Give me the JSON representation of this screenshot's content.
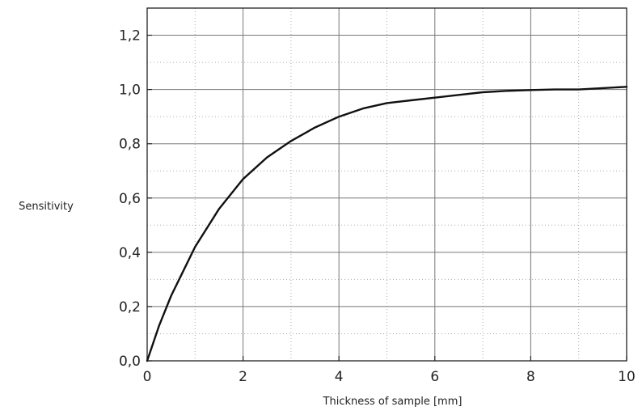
{
  "chart_data": {
    "type": "line",
    "title": "",
    "xlabel": "Thickness of sample [mm]",
    "ylabel": "Sensitivity",
    "xlim": [
      0,
      10
    ],
    "ylim": [
      0,
      1.3
    ],
    "xticks": [
      0,
      2,
      4,
      6,
      8,
      10
    ],
    "xtick_labels": [
      "0",
      "2",
      "4",
      "6",
      "8",
      "10"
    ],
    "yticks": [
      0,
      0.2,
      0.4,
      0.6,
      0.8,
      1.0,
      1.2
    ],
    "ytick_labels": [
      "0,0",
      "0,2",
      "0,4",
      "0,6",
      "0,8",
      "1,0",
      "1,2"
    ],
    "grid": true,
    "series": [
      {
        "x": [
          0,
          0.25,
          0.5,
          0.75,
          1,
          1.5,
          2,
          2.5,
          3,
          3.5,
          4,
          4.5,
          5,
          5.5,
          6,
          6.5,
          7,
          7.5,
          8,
          8.5,
          9,
          9.5,
          10
        ],
        "y": [
          0,
          0.13,
          0.24,
          0.33,
          0.42,
          0.56,
          0.67,
          0.75,
          0.81,
          0.86,
          0.9,
          0.93,
          0.95,
          0.96,
          0.97,
          0.98,
          0.99,
          0.995,
          0.998,
          1.0,
          1.0,
          1.005,
          1.01
        ],
        "color": "#111111"
      }
    ]
  }
}
